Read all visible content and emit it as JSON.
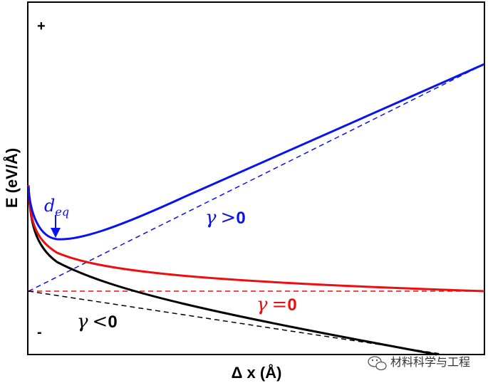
{
  "chart_data": {
    "type": "line",
    "xlabel": "Δ x (Å)",
    "ylabel": "E (eV/Å)",
    "y_top_label": "+",
    "y_bottom_label": "-",
    "annotation": {
      "main": "d",
      "sub": "eq"
    },
    "series": [
      {
        "key": "blue",
        "color": "#0a12ee",
        "label_symbol": "γ",
        "label_rel": ">",
        "label_val": "0"
      },
      {
        "key": "red",
        "color": "#ee0e0e",
        "label_symbol": "γ",
        "label_rel": "=",
        "label_val": "0"
      },
      {
        "key": "black",
        "color": "#000000",
        "label_symbol": "γ",
        "label_rel": "<",
        "label_val": "0"
      }
    ],
    "colors": {
      "blue": "#0a12ee",
      "red": "#ee0e0e",
      "black": "#000000"
    },
    "grid": false
  },
  "watermark": "材料科学与工程"
}
